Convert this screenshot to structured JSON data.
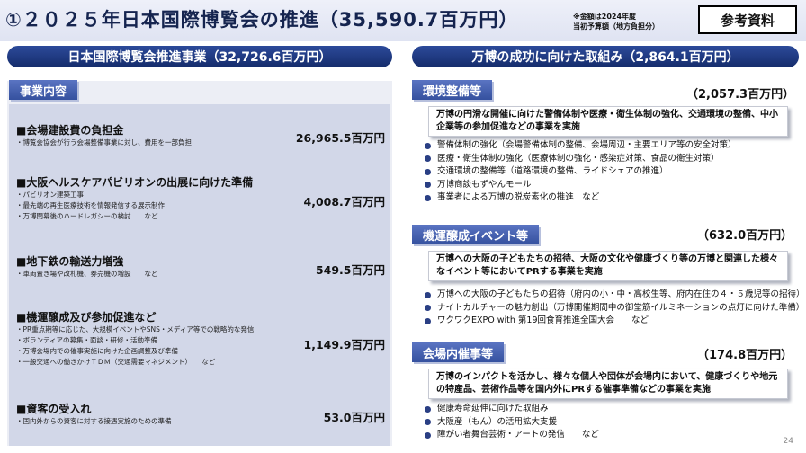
{
  "header": {
    "title": "①２０２５年日本国際博覧会の推進（35,590.7百万円）",
    "note_line1": "※金額は2024年度",
    "note_line2": "当初予算額（地方負担分）",
    "ref_label": "参考資料"
  },
  "left": {
    "pill": "日本国際博覧会推進事業（32,726.6百万円）",
    "tag": "事業内容",
    "items": [
      {
        "title": "■会場建設費の負担金",
        "subs": [
          "・博覧会協会が行う会場整備事業に対し、費用を一部負担"
        ],
        "amount": "26,965.5百万円"
      },
      {
        "title": "■大阪ヘルスケアパビリオンの出展に向けた準備",
        "subs": [
          "・パビリオン建築工事",
          "・最先端の再生医療技術を情報発信する展示制作",
          "・万博閉幕後のハードレガシーの検討　　など"
        ],
        "amount": "4,008.7百万円"
      },
      {
        "title": "■地下鉄の輸送力増強",
        "subs": [
          "・車両置き場や改札機、券売機の増設　　など"
        ],
        "amount": "549.5百万円"
      },
      {
        "title": "■機運醸成及び参加促進など",
        "subs": [
          "・PR重点期等に応じた、大規模イベントやSNS・メディア等での戦略的な発信",
          "・ボランティアの募集・面談・研修・活動準備",
          "・万博会場内での催事実施に向けた企画調整及び準備",
          "・一般交通への働きかけＴＤＭ（交通需要マネジメント）　　など"
        ],
        "amount": "1,149.9百万円"
      },
      {
        "title": "■資客の受入れ",
        "subs": [
          "・国内外からの資客に対する接遇実施のための準備"
        ],
        "amount": "53.0百万円"
      }
    ]
  },
  "right": {
    "pill": "万博の成功に向けた取組み（2,864.1百万円）",
    "sections": [
      {
        "tag": "環境整備等",
        "amount": "（2,057.3百万円）",
        "desc": "万博の円滑な開催に向けた警備体制や医療・衛生体制の強化、交通環境の整備、中小企業等の参加促進などの事業を実施",
        "bullets": [
          "警備体制の強化（会場警備体制の整備、会場周辺・主要エリア等の安全対策）",
          "医療・衛生体制の強化（医療体制の強化・感染症対策、食品の衛生対策）",
          "交通環境の整備等（道路環境の整備、ライドシェアの推進）",
          "万博商談もずやんモール",
          "事業者による万博の脱炭素化の推進　など"
        ]
      },
      {
        "tag": "機運醸成イベント等",
        "amount": "（632.0百万円）",
        "desc": "万博への大阪の子どもたちの招待、大阪の文化や健康づくり等の万博と関連した様々なイベント等においてPRする事業を実施",
        "bullets": [
          "万博への大阪の子どもたちの招待（府内の小・中・高校生等、府内在住の４・５歳児等の招待）",
          "ナイトカルチャーの魅力創出（万博開催期間中の御堂筋イルミネーションの点灯に向けた準備）",
          "ワクワクEXPO with 第19回食育推進全国大会　　など"
        ]
      },
      {
        "tag": "会場内催事等",
        "amount": "（174.8百万円）",
        "desc": "万博のインパクトを活かし、様々な個人や団体が会場内において、健康づくりや地元の特産品、芸術作品等を国内外にPRする催事準備などの事業を実施",
        "bullets": [
          "健康寿命延伸に向けた取組み",
          "大阪産（もん）の活用拡大支援",
          "障がい者舞台芸術・アートの発信　　など"
        ]
      }
    ]
  },
  "page_number": "24"
}
